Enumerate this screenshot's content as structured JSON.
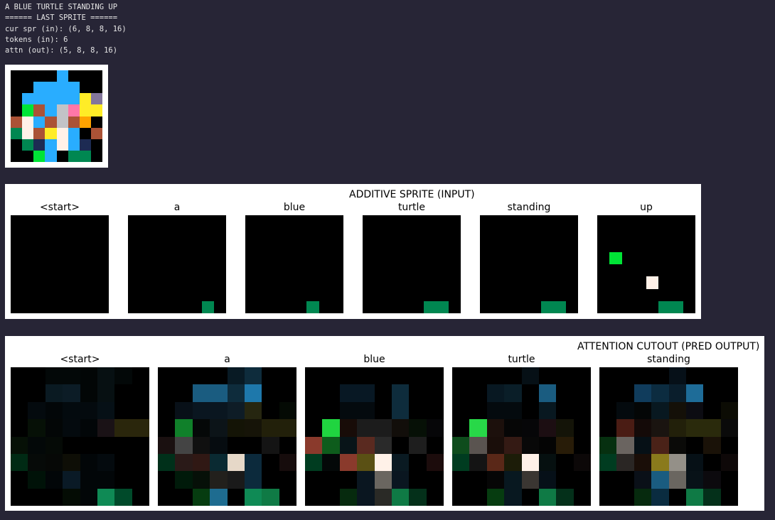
{
  "console": {
    "lines": [
      "A BLUE TURTLE STANDING UP",
      "====== LAST SPRITE ======",
      "cur spr (in): (6, 8, 8, 16)",
      "tokens (in): 6",
      "attn (out): (5, 8, 8, 16)"
    ]
  },
  "last_sprite": {
    "rows": 8,
    "cols": 8,
    "cells": [
      [
        "#000000",
        "#000000",
        "#000000",
        "#000000",
        "#29adff",
        "#000000",
        "#000000",
        "#000000"
      ],
      [
        "#000000",
        "#000000",
        "#29adff",
        "#29adff",
        "#29adff",
        "#29adff",
        "#000000",
        "#000000"
      ],
      [
        "#000000",
        "#29adff",
        "#29adff",
        "#29adff",
        "#29adff",
        "#29adff",
        "#ffec27",
        "#83769c"
      ],
      [
        "#000000",
        "#00e436",
        "#ab5236",
        "#29adff",
        "#c2c3c7",
        "#ff77a8",
        "#ffec27",
        "#ffec27"
      ],
      [
        "#ab5236",
        "#fff1e8",
        "#29adff",
        "#ab5236",
        "#c2c3c7",
        "#ab5236",
        "#ffa300",
        "#000000"
      ],
      [
        "#008751",
        "#fff1e8",
        "#ab5236",
        "#ffec27",
        "#fff1e8",
        "#29adff",
        "#000000",
        "#ab5236"
      ],
      [
        "#000000",
        "#008751",
        "#1d2b53",
        "#29adff",
        "#fff1e8",
        "#29adff",
        "#1d2b53",
        "#000000"
      ],
      [
        "#000000",
        "#000000",
        "#00e436",
        "#29adff",
        "#000000",
        "#008751",
        "#008751",
        "#000000"
      ]
    ]
  },
  "additive": {
    "title": "ADDITIVE SPRITE (INPUT)",
    "tiles": [
      {
        "label": "<start>",
        "cells": []
      },
      {
        "label": "a",
        "cells": [
          [
            7,
            6,
            "#008751"
          ]
        ]
      },
      {
        "label": "blue",
        "cells": [
          [
            7,
            5,
            "#008751"
          ]
        ]
      },
      {
        "label": "turtle",
        "cells": [
          [
            7,
            5,
            "#008751"
          ],
          [
            7,
            6,
            "#008751"
          ]
        ]
      },
      {
        "label": "standing",
        "cells": [
          [
            7,
            5,
            "#008751"
          ],
          [
            7,
            6,
            "#008751"
          ]
        ]
      },
      {
        "label": "up",
        "cells": [
          [
            3,
            1,
            "#00e436"
          ],
          [
            5,
            4,
            "#fff1e8"
          ],
          [
            7,
            5,
            "#008751"
          ],
          [
            7,
            6,
            "#008751"
          ]
        ]
      }
    ]
  },
  "attention": {
    "title": "ATTENTION CUTOUT (PRED OUTPUT)",
    "tiles": [
      {
        "label": "<start>",
        "cells": [
          [
            "#000000",
            "#000000",
            "#030808",
            "#030808",
            "#020606",
            "#071012",
            "#030808",
            "#000000"
          ],
          [
            "#000000",
            "#000000",
            "#0a1a22",
            "#0c1c26",
            "#020606",
            "#071012",
            "#000000",
            "#000000"
          ],
          [
            "#000000",
            "#040a0e",
            "#020608",
            "#030a0e",
            "#040a0e",
            "#061016",
            "#000000",
            "#000000"
          ],
          [
            "#000000",
            "#061006",
            "#030606",
            "#040a0e",
            "#020608",
            "#1a1216",
            "#2a260c",
            "#2a260c"
          ],
          [
            "#061006",
            "#030808",
            "#050a06",
            "#000000",
            "#000000",
            "#000000",
            "#000000",
            "#000000"
          ],
          [
            "#002a14",
            "#060a08",
            "#060806",
            "#0e0e06",
            "#020608",
            "#040a0e",
            "#000000",
            "#000000"
          ],
          [
            "#000000",
            "#001208",
            "#020608",
            "#0a1a26",
            "#020608",
            "#020608",
            "#000000",
            "#000000"
          ],
          [
            "#000000",
            "#000000",
            "#000000",
            "#040c04",
            "#020608",
            "#0f8a55",
            "#004a2a",
            "#000000"
          ]
        ]
      },
      {
        "label": "a",
        "cells": [
          [
            "#000000",
            "#000000",
            "#000000",
            "#000000",
            "#081a24",
            "#0e2c3c",
            "#000000",
            "#000000"
          ],
          [
            "#000000",
            "#000000",
            "#1a5c80",
            "#1a5c80",
            "#0e2c3c",
            "#1e78ab",
            "#000000",
            "#000000"
          ],
          [
            "#000000",
            "#081018",
            "#0a1620",
            "#0a1620",
            "#0e1c26",
            "#262610",
            "#000000",
            "#040a04"
          ],
          [
            "#000000",
            "#10802a",
            "#050808",
            "#0c1418",
            "#141406",
            "#161408",
            "#22200a",
            "#22200a"
          ],
          [
            "#1a1010",
            "#444444",
            "#101010",
            "#060c10",
            "#000000",
            "#000000",
            "#141414",
            "#000000"
          ],
          [
            "#00301a",
            "#2a1a18",
            "#301814",
            "#0a2a32",
            "#e6d8c8",
            "#0c2a3c",
            "#000000",
            "#160c0c"
          ],
          [
            "#000000",
            "#001a0a",
            "#061008",
            "#22201c",
            "#1a1a1a",
            "#0c2a3c",
            "#000000",
            "#000000"
          ],
          [
            "#000000",
            "#000000",
            "#063c10",
            "#1e6c90",
            "#000000",
            "#0f8a55",
            "#0f7a45",
            "#000000"
          ]
        ]
      },
      {
        "label": "blue",
        "cells": [
          [
            "#000000",
            "#000000",
            "#000000",
            "#000000",
            "#000000",
            "#000000",
            "#000000",
            "#000000"
          ],
          [
            "#000000",
            "#000000",
            "#081824",
            "#081824",
            "#000000",
            "#0e2c3c",
            "#000000",
            "#000000"
          ],
          [
            "#000000",
            "#000000",
            "#040a0e",
            "#040a0e",
            "#000000",
            "#0e2c3c",
            "#000000",
            "#000000"
          ],
          [
            "#000000",
            "#20d440",
            "#180c08",
            "#1c1c1c",
            "#1c1c1c",
            "#120e0a",
            "#061006",
            "#060608"
          ],
          [
            "#8a3a2c",
            "#0e5c1c",
            "#081418",
            "#5a2a20",
            "#2a2a2a",
            "#000000",
            "#1e1e1e",
            "#000000"
          ],
          [
            "#003c20",
            "#040808",
            "#8a3a2c",
            "#5a5014",
            "#fff1e8",
            "#0a1a22",
            "#000000",
            "#1c0c0c"
          ],
          [
            "#000000",
            "#000000",
            "#000000",
            "#0a1620",
            "#6a6660",
            "#0a1620",
            "#000000",
            "#000000"
          ],
          [
            "#000000",
            "#000000",
            "#062a0e",
            "#0a1620",
            "#2a2a26",
            "#0f7a45",
            "#04301a",
            "#000000"
          ]
        ]
      },
      {
        "label": "turtle",
        "cells": [
          [
            "#000000",
            "#000000",
            "#000000",
            "#000000",
            "#061016",
            "#000000",
            "#000000",
            "#000000"
          ],
          [
            "#000000",
            "#000000",
            "#081822",
            "#0a1e28",
            "#000000",
            "#1a5c80",
            "#000000",
            "#000000"
          ],
          [
            "#000000",
            "#000000",
            "#040a0e",
            "#040a0e",
            "#000000",
            "#081820",
            "#000000",
            "#000000"
          ],
          [
            "#000000",
            "#28d848",
            "#1c100c",
            "#060606",
            "#060608",
            "#1c0e12",
            "#141408",
            "#000000"
          ],
          [
            "#0e4c1c",
            "#5a5450",
            "#1a0e0a",
            "#341a14",
            "#080808",
            "#040404",
            "#281c08",
            "#000000"
          ],
          [
            "#003c20",
            "#141414",
            "#5a2818",
            "#1c1c08",
            "#fff1e8",
            "#061010",
            "#000000",
            "#0c0808"
          ],
          [
            "#000000",
            "#000000",
            "#060606",
            "#081820",
            "#3a3632",
            "#061018",
            "#000000",
            "#000000"
          ],
          [
            "#000000",
            "#000000",
            "#063c10",
            "#081820",
            "#000000",
            "#0f7a45",
            "#04301a",
            "#000000"
          ]
        ]
      },
      {
        "label": "standing",
        "cells": [
          [
            "#000000",
            "#000000",
            "#000000",
            "#000000",
            "#061018",
            "#000000",
            "#000000",
            "#000000"
          ],
          [
            "#000000",
            "#000000",
            "#103c5c",
            "#0c2c40",
            "#0a1e2c",
            "#1e6c98",
            "#000000",
            "#000000"
          ],
          [
            "#000000",
            "#040a0e",
            "#040606",
            "#081820",
            "#141008",
            "#0c0c12",
            "#000000",
            "#0c0c04"
          ],
          [
            "#000000",
            "#4a1c14",
            "#140a08",
            "#1a1410",
            "#22200a",
            "#2a2a0c",
            "#2a2a0c",
            "#0a0a0a"
          ],
          [
            "#063010",
            "#6a6460",
            "#061016",
            "#4a2218",
            "#0a0a08",
            "#000000",
            "#1a1208",
            "#000000"
          ],
          [
            "#003c20",
            "#2a2624",
            "#1a0e08",
            "#8a7a1c",
            "#949088",
            "#061016",
            "#000000",
            "#0e0808"
          ],
          [
            "#000000",
            "#000000",
            "#0a1018",
            "#1a5c80",
            "#6a6660",
            "#081218",
            "#0c0a0e",
            "#000000"
          ],
          [
            "#000000",
            "#000000",
            "#062a0e",
            "#0a2c40",
            "#000000",
            "#0f7a45",
            "#04301a",
            "#000000"
          ]
        ]
      }
    ]
  }
}
